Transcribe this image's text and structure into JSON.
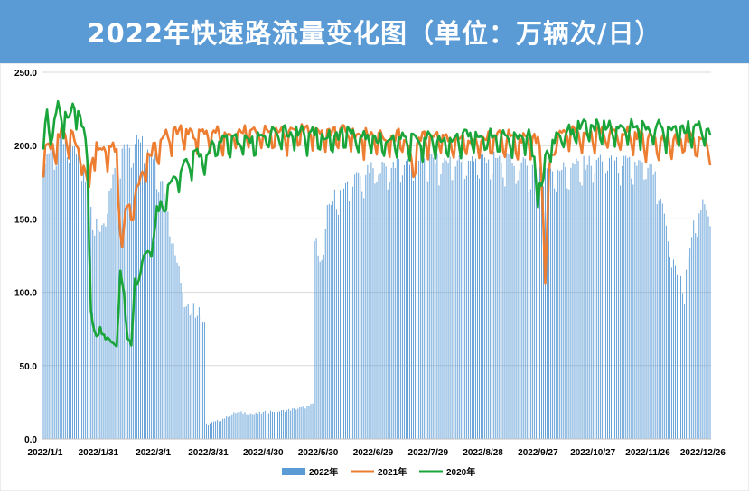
{
  "title": "2022年快速路流量变化图（单位：万辆次/日）",
  "chart_data": {
    "type": "bar+line",
    "title": "2022年快速路流量变化图（单位：万辆次/日）",
    "xlabel": "",
    "ylabel": "",
    "ylim": [
      0,
      250
    ],
    "yticks": [
      "0.0",
      "50.0",
      "100.0",
      "150.0",
      "200.0",
      "250.0"
    ],
    "x_tick_labels": [
      "2022/1/1",
      "2022/1/31",
      "2022/3/1",
      "2022/3/31",
      "2022/4/30",
      "2022/5/30",
      "2022/6/29",
      "2022/7/29",
      "2022/8/28",
      "2022/9/27",
      "2022/10/27",
      "2022/11/26",
      "2022/12/26"
    ],
    "legend_position": "bottom",
    "grid": "horizontal",
    "colors": {
      "2022年": "#5b9bd5",
      "2021年": "#ed7d31",
      "2020年": "#1aa53a"
    },
    "series": [
      {
        "name": "2022年",
        "type": "bar",
        "keypoints": [
          [
            0,
            190
          ],
          [
            5,
            200
          ],
          [
            10,
            205
          ],
          [
            15,
            202
          ],
          [
            20,
            192
          ],
          [
            25,
            170
          ],
          [
            28,
            150
          ],
          [
            30,
            140
          ],
          [
            33,
            150
          ],
          [
            36,
            165
          ],
          [
            40,
            190
          ],
          [
            45,
            200
          ],
          [
            50,
            205
          ],
          [
            55,
            202
          ],
          [
            60,
            195
          ],
          [
            63,
            185
          ],
          [
            66,
            170
          ],
          [
            69,
            150
          ],
          [
            72,
            130
          ],
          [
            75,
            110
          ],
          [
            78,
            95
          ],
          [
            80,
            85
          ],
          [
            82,
            95
          ],
          [
            85,
            90
          ],
          [
            88,
            75
          ],
          [
            89,
            10
          ],
          [
            95,
            12
          ],
          [
            100,
            15
          ],
          [
            105,
            18
          ],
          [
            110,
            18
          ],
          [
            115,
            17
          ],
          [
            120,
            18
          ],
          [
            125,
            19
          ],
          [
            130,
            19
          ],
          [
            135,
            20
          ],
          [
            140,
            21
          ],
          [
            145,
            22
          ],
          [
            147,
            24
          ],
          [
            148,
            135
          ],
          [
            150,
            130
          ],
          [
            152,
            120
          ],
          [
            154,
            150
          ],
          [
            156,
            160
          ],
          [
            160,
            168
          ],
          [
            165,
            172
          ],
          [
            170,
            178
          ],
          [
            175,
            180
          ],
          [
            180,
            185
          ],
          [
            185,
            185
          ],
          [
            190,
            188
          ],
          [
            195,
            190
          ],
          [
            200,
            190
          ],
          [
            205,
            192
          ],
          [
            210,
            192
          ],
          [
            215,
            190
          ],
          [
            220,
            190
          ],
          [
            225,
            190
          ],
          [
            230,
            190
          ],
          [
            235,
            192
          ],
          [
            240,
            192
          ],
          [
            245,
            192
          ],
          [
            250,
            190
          ],
          [
            255,
            190
          ],
          [
            260,
            188
          ],
          [
            265,
            186
          ],
          [
            270,
            185
          ],
          [
            275,
            185
          ],
          [
            280,
            185
          ],
          [
            285,
            185
          ],
          [
            290,
            187
          ],
          [
            295,
            188
          ],
          [
            300,
            190
          ],
          [
            305,
            192
          ],
          [
            310,
            192
          ],
          [
            315,
            190
          ],
          [
            320,
            188
          ],
          [
            325,
            188
          ],
          [
            330,
            186
          ],
          [
            333,
            182
          ],
          [
            336,
            170
          ],
          [
            339,
            150
          ],
          [
            342,
            130
          ],
          [
            345,
            118
          ],
          [
            348,
            110
          ],
          [
            350,
            100
          ],
          [
            352,
            125
          ],
          [
            355,
            145
          ],
          [
            358,
            155
          ],
          [
            360,
            160
          ],
          [
            364,
            160
          ]
        ]
      },
      {
        "name": "2021年",
        "type": "line",
        "keypoints": [
          [
            0,
            195
          ],
          [
            5,
            200
          ],
          [
            10,
            210
          ],
          [
            15,
            208
          ],
          [
            20,
            200
          ],
          [
            25,
            175
          ],
          [
            27,
            200
          ],
          [
            30,
            200
          ],
          [
            35,
            200
          ],
          [
            40,
            200
          ],
          [
            42,
            140
          ],
          [
            43,
            135
          ],
          [
            45,
            155
          ],
          [
            50,
            165
          ],
          [
            55,
            185
          ],
          [
            60,
            200
          ],
          [
            65,
            205
          ],
          [
            70,
            210
          ],
          [
            75,
            212
          ],
          [
            80,
            208
          ],
          [
            85,
            210
          ],
          [
            90,
            210
          ],
          [
            95,
            210
          ],
          [
            100,
            208
          ],
          [
            105,
            210
          ],
          [
            110,
            210
          ],
          [
            115,
            210
          ],
          [
            120,
            210
          ],
          [
            125,
            210
          ],
          [
            130,
            212
          ],
          [
            135,
            210
          ],
          [
            140,
            212
          ],
          [
            145,
            212
          ],
          [
            150,
            210
          ],
          [
            155,
            208
          ],
          [
            160,
            210
          ],
          [
            165,
            210
          ],
          [
            170,
            208
          ],
          [
            175,
            208
          ],
          [
            180,
            208
          ],
          [
            185,
            207
          ],
          [
            190,
            205
          ],
          [
            195,
            208
          ],
          [
            200,
            200
          ],
          [
            202,
            185
          ],
          [
            204,
            205
          ],
          [
            210,
            208
          ],
          [
            215,
            207
          ],
          [
            220,
            205
          ],
          [
            225,
            206
          ],
          [
            230,
            205
          ],
          [
            235,
            205
          ],
          [
            240,
            205
          ],
          [
            245,
            207
          ],
          [
            250,
            207
          ],
          [
            255,
            207
          ],
          [
            260,
            205
          ],
          [
            265,
            205
          ],
          [
            270,
            205
          ],
          [
            272,
            185
          ],
          [
            274,
            102
          ],
          [
            276,
            185
          ],
          [
            280,
            208
          ],
          [
            285,
            210
          ],
          [
            290,
            210
          ],
          [
            295,
            210
          ],
          [
            300,
            210
          ],
          [
            305,
            210
          ],
          [
            310,
            210
          ],
          [
            315,
            210
          ],
          [
            320,
            210
          ],
          [
            325,
            208
          ],
          [
            330,
            205
          ],
          [
            335,
            205
          ],
          [
            340,
            205
          ],
          [
            345,
            205
          ],
          [
            350,
            207
          ],
          [
            355,
            205
          ],
          [
            360,
            205
          ],
          [
            364,
            203
          ]
        ]
      },
      {
        "name": "2020年",
        "type": "line",
        "keypoints": [
          [
            0,
            200
          ],
          [
            2,
            225
          ],
          [
            5,
            210
          ],
          [
            8,
            228
          ],
          [
            12,
            220
          ],
          [
            15,
            225
          ],
          [
            17,
            232
          ],
          [
            20,
            222
          ],
          [
            22,
            210
          ],
          [
            24,
            200
          ],
          [
            25,
            130
          ],
          [
            26,
            85
          ],
          [
            27,
            75
          ],
          [
            30,
            74
          ],
          [
            33,
            72
          ],
          [
            36,
            68
          ],
          [
            40,
            65
          ],
          [
            42,
            110
          ],
          [
            44,
            100
          ],
          [
            46,
            70
          ],
          [
            48,
            60
          ],
          [
            50,
            108
          ],
          [
            53,
            110
          ],
          [
            56,
            130
          ],
          [
            59,
            128
          ],
          [
            62,
            155
          ],
          [
            65,
            160
          ],
          [
            68,
            175
          ],
          [
            72,
            180
          ],
          [
            76,
            185
          ],
          [
            80,
            190
          ],
          [
            84,
            195
          ],
          [
            88,
            195
          ],
          [
            92,
            200
          ],
          [
            96,
            205
          ],
          [
            100,
            205
          ],
          [
            105,
            205
          ],
          [
            110,
            205
          ],
          [
            115,
            205
          ],
          [
            120,
            208
          ],
          [
            125,
            210
          ],
          [
            130,
            210
          ],
          [
            135,
            210
          ],
          [
            140,
            210
          ],
          [
            145,
            210
          ],
          [
            150,
            208
          ],
          [
            155,
            208
          ],
          [
            160,
            207
          ],
          [
            165,
            210
          ],
          [
            170,
            207
          ],
          [
            175,
            208
          ],
          [
            180,
            206
          ],
          [
            185,
            205
          ],
          [
            190,
            205
          ],
          [
            195,
            205
          ],
          [
            200,
            205
          ],
          [
            205,
            206
          ],
          [
            210,
            206
          ],
          [
            215,
            206
          ],
          [
            220,
            206
          ],
          [
            225,
            207
          ],
          [
            230,
            208
          ],
          [
            235,
            208
          ],
          [
            240,
            208
          ],
          [
            245,
            208
          ],
          [
            250,
            208
          ],
          [
            255,
            208
          ],
          [
            260,
            208
          ],
          [
            265,
            210
          ],
          [
            268,
            190
          ],
          [
            270,
            172
          ],
          [
            272,
            170
          ],
          [
            274,
            190
          ],
          [
            278,
            205
          ],
          [
            282,
            208
          ],
          [
            286,
            210
          ],
          [
            290,
            212
          ],
          [
            295,
            214
          ],
          [
            300,
            214
          ],
          [
            305,
            214
          ],
          [
            310,
            214
          ],
          [
            315,
            214
          ],
          [
            320,
            214
          ],
          [
            325,
            214
          ],
          [
            330,
            214
          ],
          [
            335,
            214
          ],
          [
            340,
            212
          ],
          [
            345,
            212
          ],
          [
            350,
            212
          ],
          [
            355,
            214
          ],
          [
            360,
            212
          ],
          [
            364,
            207
          ]
        ]
      }
    ]
  }
}
